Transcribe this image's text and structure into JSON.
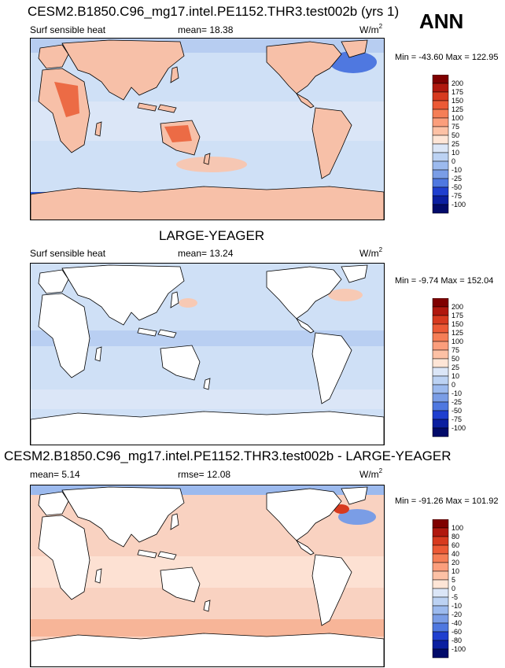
{
  "season": "ANN",
  "chart_data": [
    {
      "type": "heatmap",
      "title": "CESM2.B1850.C96_mg17.intel.PE1152.THR3.test002b (yrs 1)",
      "left_label": "Surf sensible heat",
      "center_label": "mean=  18.38",
      "units_base": "W/m",
      "units_exp": "2",
      "minmax": "Min = -43.60 Max = 122.95",
      "colorbar": {
        "levels": [
          "200",
          "175",
          "150",
          "125",
          "100",
          "75",
          "50",
          "25",
          "10",
          "0",
          "-10",
          "-25",
          "-50",
          "-75",
          "-100"
        ],
        "colors": [
          "#7f0000",
          "#b0180e",
          "#d73a1f",
          "#ec5a36",
          "#f57e56",
          "#fb9e7c",
          "#fdc1a5",
          "#fee5d6",
          "#dbe6f7",
          "#bcd2f3",
          "#9cbaee",
          "#7a9de6",
          "#4f78e0",
          "#1f3fcf",
          "#0b1fa0",
          "#020b6a"
        ]
      }
    },
    {
      "type": "heatmap",
      "title": "LARGE-YEAGER",
      "left_label": "Surf sensible heat",
      "center_label": "mean=  13.24",
      "units_base": "W/m",
      "units_exp": "2",
      "minmax": "Min =  -9.74 Max = 152.04",
      "colorbar": {
        "levels": [
          "200",
          "175",
          "150",
          "125",
          "100",
          "75",
          "50",
          "25",
          "10",
          "0",
          "-10",
          "-25",
          "-50",
          "-75",
          "-100"
        ],
        "colors": [
          "#7f0000",
          "#b0180e",
          "#d73a1f",
          "#ec5a36",
          "#f57e56",
          "#fb9e7c",
          "#fdc1a5",
          "#fee5d6",
          "#dbe6f7",
          "#bcd2f3",
          "#9cbaee",
          "#7a9de6",
          "#4f78e0",
          "#1f3fcf",
          "#0b1fa0",
          "#020b6a"
        ]
      }
    },
    {
      "type": "heatmap",
      "title": "CESM2.B1850.C96_mg17.intel.PE1152.THR3.test002b - LARGE-YEAGER",
      "left_label": "mean=   5.14",
      "center_label": "rmse=  12.08",
      "units_base": "W/m",
      "units_exp": "2",
      "minmax": "Min = -91.26 Max = 101.92",
      "colorbar": {
        "levels": [
          "100",
          "80",
          "60",
          "40",
          "20",
          "10",
          "5",
          "0",
          "-5",
          "-10",
          "-20",
          "-40",
          "-60",
          "-80",
          "-100"
        ],
        "colors": [
          "#7f0000",
          "#b0180e",
          "#d73a1f",
          "#ec5a36",
          "#f57e56",
          "#fb9e7c",
          "#fdc1a5",
          "#fee5d6",
          "#dbe6f7",
          "#bcd2f3",
          "#9cbaee",
          "#7a9de6",
          "#4f78e0",
          "#1f3fcf",
          "#0b1fa0",
          "#020b6a"
        ]
      }
    }
  ]
}
